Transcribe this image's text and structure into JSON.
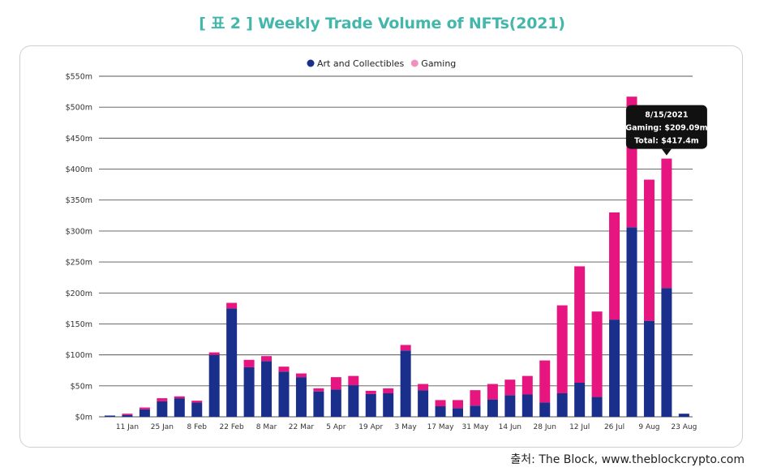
{
  "page": {
    "title": "[ 표 2 ] Weekly Trade Volume of NFTs(2021)",
    "source": "출처: The Block, www.theblockcrypto.com"
  },
  "colors": {
    "title": "#44b7ac",
    "art": "#1a2f8c",
    "gaming": "#e6157f",
    "gaming_legend": "#f090c0",
    "grid": "#555555",
    "tooltip_bg": "#111111"
  },
  "chart_data": {
    "type": "bar",
    "stacked": true,
    "title": "",
    "xlabel": "",
    "ylabel": "",
    "ylim": [
      0,
      550
    ],
    "yticks": [
      0,
      50,
      100,
      150,
      200,
      250,
      300,
      350,
      400,
      450,
      500,
      550
    ],
    "ytick_labels": [
      "$0m",
      "$50m",
      "$100m",
      "$150m",
      "$200m",
      "$250m",
      "$300m",
      "$350m",
      "$400m",
      "$450m",
      "$500m",
      "$550m"
    ],
    "xtick_labels": [
      {
        "index": 1,
        "label": "11 Jan"
      },
      {
        "index": 3,
        "label": "25 Jan"
      },
      {
        "index": 5,
        "label": "8 Feb"
      },
      {
        "index": 7,
        "label": "22 Feb"
      },
      {
        "index": 9,
        "label": "8 Mar"
      },
      {
        "index": 11,
        "label": "22 Mar"
      },
      {
        "index": 13,
        "label": "5 Apr"
      },
      {
        "index": 15,
        "label": "19 Apr"
      },
      {
        "index": 17,
        "label": "3 May"
      },
      {
        "index": 19,
        "label": "17 May"
      },
      {
        "index": 21,
        "label": "31 May"
      },
      {
        "index": 23,
        "label": "14 Jun"
      },
      {
        "index": 25,
        "label": "28 Jun"
      },
      {
        "index": 27,
        "label": "12 Jul"
      },
      {
        "index": 29,
        "label": "26 Jul"
      },
      {
        "index": 31,
        "label": "9 Aug"
      },
      {
        "index": 33,
        "label": "23 Aug"
      }
    ],
    "legend_position": "top-center",
    "series": [
      {
        "name": "Art and Collectibles",
        "color": "#1a2f8c",
        "values": [
          2,
          3,
          12,
          25,
          30,
          23,
          100,
          175,
          80,
          90,
          73,
          64,
          41,
          44,
          51,
          37,
          38,
          107,
          43,
          17,
          14,
          18,
          28,
          35,
          36,
          23,
          38,
          55,
          32,
          157,
          306,
          155,
          208,
          5
        ]
      },
      {
        "name": "Gaming",
        "color": "#e6157f",
        "values": [
          0,
          2,
          3,
          5,
          3,
          3,
          4,
          9,
          12,
          8,
          8,
          6,
          5,
          20,
          15,
          5,
          8,
          9,
          10,
          10,
          13,
          25,
          25,
          25,
          30,
          68,
          142,
          188,
          138,
          173,
          211,
          228,
          209,
          0
        ]
      }
    ],
    "tooltip": {
      "index": 32,
      "date": "8/15/2021",
      "gaming_line": "Gaming: $209.09m",
      "total_line": "Total: $417.4m"
    }
  }
}
